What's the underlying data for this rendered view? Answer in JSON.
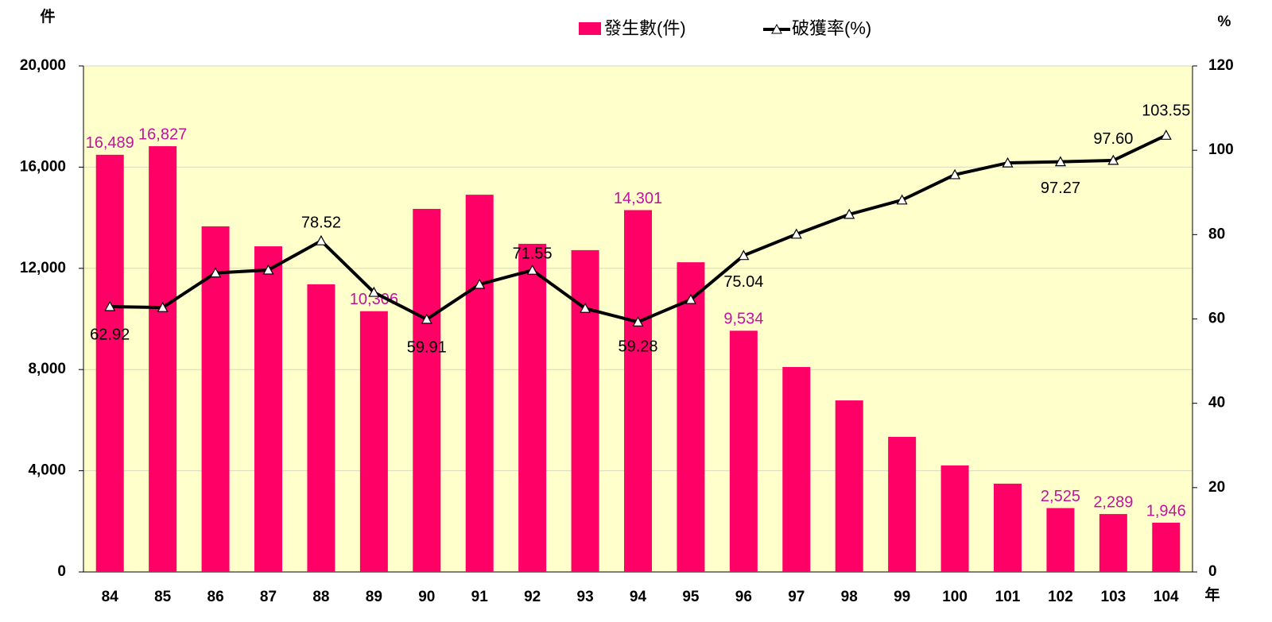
{
  "chart_data": {
    "type": "bar_line",
    "y_label": "件",
    "y2_label": "%",
    "x_label": "年",
    "categories": [
      "84",
      "85",
      "86",
      "87",
      "88",
      "89",
      "90",
      "91",
      "92",
      "93",
      "94",
      "95",
      "96",
      "97",
      "98",
      "99",
      "100",
      "101",
      "102",
      "103",
      "104"
    ],
    "series": [
      {
        "name": "發生數(件)",
        "type": "bar",
        "color": "#ff0066",
        "label_color": "#c0149c",
        "values": [
          16489,
          16827,
          13660,
          12870,
          11370,
          10306,
          14350,
          14910,
          12970,
          12720,
          14301,
          12240,
          9534,
          8100,
          6780,
          5340,
          4210,
          3490,
          2525,
          2289,
          1946
        ],
        "value_labels": [
          "16,489",
          "16,827",
          null,
          null,
          null,
          "10,306",
          null,
          null,
          null,
          null,
          "14,301",
          null,
          "9,534",
          null,
          null,
          null,
          null,
          null,
          "2,525",
          "2,289",
          "1,946"
        ]
      },
      {
        "name": "破獲率(%)",
        "type": "line",
        "axis": "y2",
        "color": "#000000",
        "values": [
          62.92,
          62.7,
          70.9,
          71.6,
          78.52,
          66.3,
          59.91,
          68.2,
          71.55,
          62.5,
          59.28,
          64.6,
          75.04,
          80.1,
          84.8,
          88.2,
          94.2,
          97.0,
          97.27,
          97.6,
          103.55
        ],
        "value_labels": [
          "62.92",
          null,
          null,
          null,
          "78.52",
          null,
          "59.91",
          null,
          "71.55",
          null,
          "59.28",
          null,
          "75.04",
          null,
          null,
          null,
          null,
          null,
          "97.27",
          "97.60",
          "103.55"
        ]
      }
    ],
    "ylim": [
      0,
      20000
    ],
    "yticks": [
      0,
      {
        "value": 4000,
        "label": "4,000"
      },
      {
        "value": 8000,
        "label": "8,000"
      },
      {
        "value": 12000,
        "label": "12,000"
      },
      {
        "value": 16000,
        "label": "16,000"
      },
      {
        "value": 20000,
        "label": "20,000"
      }
    ],
    "y2lim": [
      0,
      120
    ],
    "y2ticks": [
      0,
      20,
      40,
      60,
      80,
      100,
      120
    ],
    "grid": true,
    "background": "#ffffcc"
  }
}
